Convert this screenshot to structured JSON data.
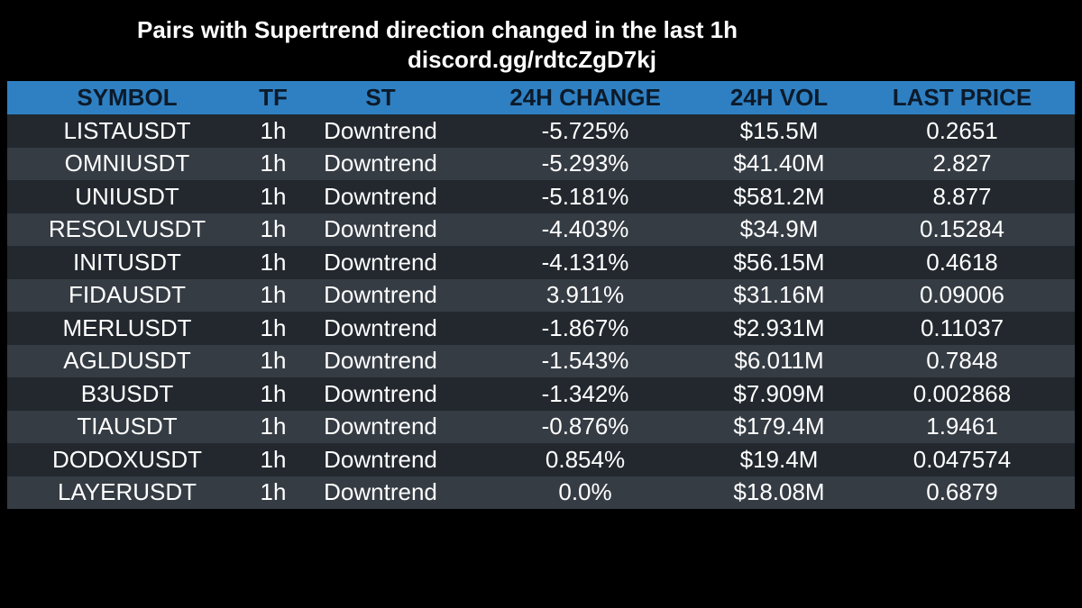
{
  "header": {
    "title": "Pairs with Supertrend direction changed in the last 1h",
    "subtitle": "discord.gg/rdtcZgD7kj"
  },
  "table": {
    "columns": [
      "SYMBOL",
      "TF",
      "ST",
      "24H CHANGE",
      "24H VOL",
      "LAST PRICE"
    ],
    "rows": [
      [
        "LISTAUSDT",
        "1h",
        "Downtrend",
        "-5.725%",
        "$15.5M",
        "0.2651"
      ],
      [
        "OMNIUSDT",
        "1h",
        "Downtrend",
        "-5.293%",
        "$41.40M",
        "2.827"
      ],
      [
        "UNIUSDT",
        "1h",
        "Downtrend",
        "-5.181%",
        "$581.2M",
        "8.877"
      ],
      [
        "RESOLVUSDT",
        "1h",
        "Downtrend",
        "-4.403%",
        "$34.9M",
        "0.15284"
      ],
      [
        "INITUSDT",
        "1h",
        "Downtrend",
        "-4.131%",
        "$56.15M",
        "0.4618"
      ],
      [
        "FIDAUSDT",
        "1h",
        "Downtrend",
        "3.911%",
        "$31.16M",
        "0.09006"
      ],
      [
        "MERLUSDT",
        "1h",
        "Downtrend",
        "-1.867%",
        "$2.931M",
        "0.11037"
      ],
      [
        "AGLDUSDT",
        "1h",
        "Downtrend",
        "-1.543%",
        "$6.011M",
        "0.7848"
      ],
      [
        "B3USDT",
        "1h",
        "Downtrend",
        "-1.342%",
        "$7.909M",
        "0.002868"
      ],
      [
        "TIAUSDT",
        "1h",
        "Downtrend",
        "-0.876%",
        "$179.4M",
        "1.9461"
      ],
      [
        "DODOXUSDT",
        "1h",
        "Downtrend",
        "0.854%",
        "$19.4M",
        "0.047574"
      ],
      [
        "LAYERUSDT",
        "1h",
        "Downtrend",
        "0.0%",
        "$18.08M",
        "0.6879"
      ]
    ]
  },
  "colors": {
    "background": "#000000",
    "header_row": "#2f80c2",
    "row_dark": "#22282e",
    "row_light": "#353c44",
    "text": "#ffffff"
  }
}
